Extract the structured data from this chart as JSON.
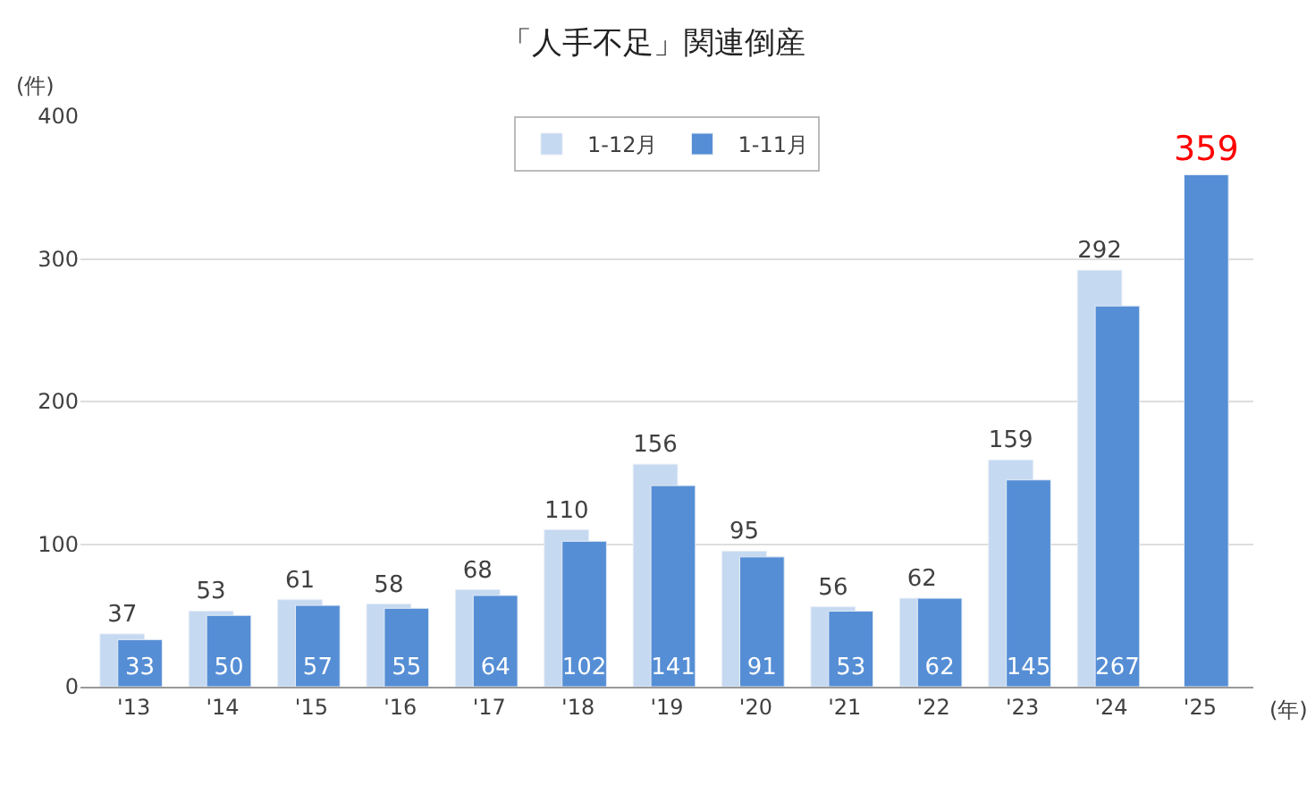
{
  "chart_data": {
    "type": "bar",
    "title": "「人手不足」関連倒産",
    "ylabel": "(件)",
    "xlabel": "(年)",
    "categories": [
      "'13",
      "'14",
      "'15",
      "'16",
      "'17",
      "'18",
      "'19",
      "'20",
      "'21",
      "'22",
      "'23",
      "'24",
      "'25"
    ],
    "series": [
      {
        "name": "1-12月",
        "color": "#c5d9f1",
        "values": [
          37,
          53,
          61,
          58,
          68,
          110,
          156,
          95,
          56,
          62,
          159,
          292,
          null
        ]
      },
      {
        "name": "1-11月",
        "color": "#558ed5",
        "values": [
          33,
          50,
          57,
          55,
          64,
          102,
          141,
          91,
          53,
          62,
          145,
          267,
          359
        ]
      }
    ],
    "ylim": [
      0,
      400
    ],
    "yticks": [
      0,
      100,
      200,
      300,
      400
    ],
    "grid": "y",
    "legend": "top",
    "data_labels": true
  }
}
